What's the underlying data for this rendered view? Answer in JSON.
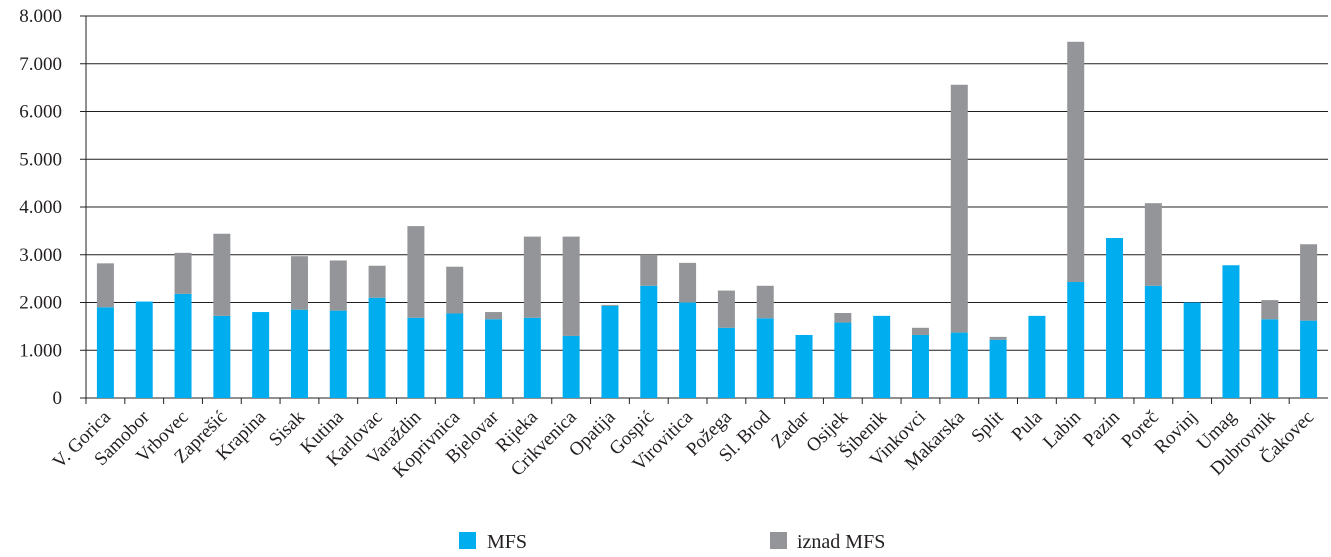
{
  "chart_data": {
    "type": "bar",
    "stacked": true,
    "categories": [
      "V. Gorica",
      "Samobor",
      "Vrbovec",
      "Zaprešić",
      "Krapina",
      "Sisak",
      "Kutina",
      "Karlovac",
      "Varaždin",
      "Koprivnica",
      "Bjelovar",
      "Rijeka",
      "Crikvenica",
      "Opatija",
      "Gospić",
      "Virovitica",
      "Požega",
      "Sl. Brod",
      "Zadar",
      "Osijek",
      "Šibenik",
      "Vinkovci",
      "Makarska",
      "Split",
      "Pula",
      "Labin",
      "Pazin",
      "Poreč",
      "Rovinj",
      "Umag",
      "Dubrovnik",
      "Čakovec"
    ],
    "series": [
      {
        "name": "MFS",
        "color": "#00aeef",
        "values": [
          1900,
          2020,
          2180,
          1720,
          1800,
          1850,
          1830,
          2100,
          1680,
          1770,
          1650,
          1680,
          1300,
          1930,
          2350,
          2000,
          1470,
          1670,
          1320,
          1580,
          1720,
          1320,
          1370,
          1220,
          1720,
          2430,
          3350,
          2350,
          2000,
          2780,
          1650,
          1620
        ]
      },
      {
        "name": "iznad MFS",
        "color": "#939598",
        "values": [
          920,
          0,
          860,
          1720,
          0,
          1120,
          1050,
          670,
          1920,
          980,
          150,
          1700,
          2080,
          20,
          650,
          830,
          780,
          680,
          0,
          200,
          0,
          150,
          5190,
          60,
          0,
          5030,
          0,
          1730,
          0,
          0,
          400,
          1600
        ]
      }
    ],
    "yticks": [
      "0",
      "1.000",
      "2.000",
      "3.000",
      "4.000",
      "5.000",
      "6.000",
      "7.000",
      "8.000"
    ],
    "ylim": [
      0,
      8000
    ],
    "grid": true,
    "legend_position": "bottom",
    "title": "",
    "xlabel": "",
    "ylabel": ""
  }
}
